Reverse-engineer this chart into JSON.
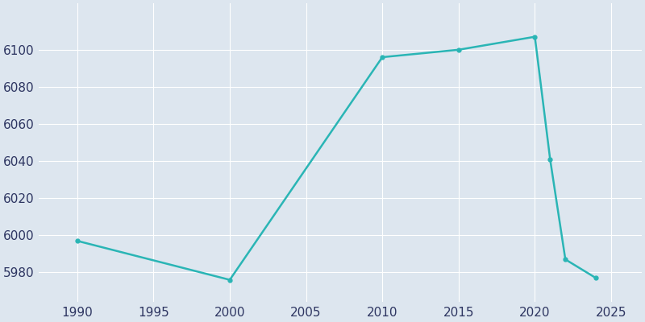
{
  "years": [
    1990,
    2000,
    2010,
    2015,
    2020,
    2021,
    2022,
    2024
  ],
  "population": [
    5997,
    5976,
    6096,
    6100,
    6107,
    6041,
    5987,
    5977
  ],
  "line_color": "#2AB5B5",
  "marker": "o",
  "marker_size": 3.5,
  "background_color": "#DDE6EF",
  "grid_color": "#ffffff",
  "tick_label_color": "#2d3561",
  "xticks": [
    1990,
    1995,
    2000,
    2005,
    2010,
    2015,
    2020,
    2025
  ],
  "yticks": [
    5980,
    6000,
    6020,
    6040,
    6060,
    6080,
    6100
  ],
  "xlim": [
    1987.5,
    2027
  ],
  "ylim_min": 5966,
  "ylim_max": 5966
}
